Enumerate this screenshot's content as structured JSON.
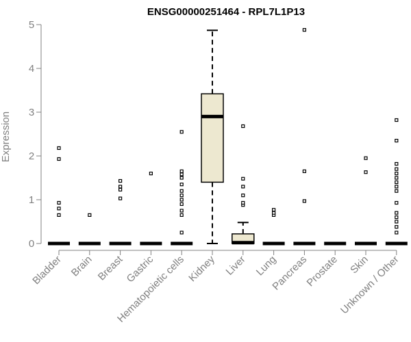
{
  "chart_data": {
    "type": "box",
    "title": "ENSG00000251464 - RPL7L1P13",
    "xlabel": "",
    "ylabel": "Expression",
    "ylim": [
      0,
      5
    ],
    "yticks": [
      0,
      1,
      2,
      3,
      4,
      5
    ],
    "grid": false,
    "box_fill": "#ede8d0",
    "categories": [
      "Bladder",
      "Brain",
      "Breast",
      "Gastric",
      "Hematopoietic cells",
      "Kidney",
      "Liver",
      "Lung",
      "Pancreas",
      "Prostate",
      "Skin",
      "Unknown / Other"
    ],
    "boxes": [
      {
        "q1": 0,
        "median": 0,
        "q3": 0,
        "whisker_low": 0,
        "whisker_high": 0,
        "outliers": [
          0.65,
          0.8,
          0.93,
          1.93,
          2.18
        ]
      },
      {
        "q1": 0,
        "median": 0,
        "q3": 0,
        "whisker_low": 0,
        "whisker_high": 0,
        "outliers": [
          0.65
        ]
      },
      {
        "q1": 0,
        "median": 0,
        "q3": 0,
        "whisker_low": 0,
        "whisker_high": 0,
        "outliers": [
          1.03,
          1.23,
          1.3,
          1.43
        ]
      },
      {
        "q1": 0,
        "median": 0,
        "q3": 0,
        "whisker_low": 0,
        "whisker_high": 0,
        "outliers": [
          1.6
        ]
      },
      {
        "q1": 0,
        "median": 0,
        "q3": 0,
        "whisker_low": 0,
        "whisker_high": 0,
        "outliers": [
          0.25,
          0.65,
          0.75,
          0.9,
          1.0,
          1.1,
          1.2,
          1.35,
          1.5,
          1.58,
          1.65,
          2.55
        ]
      },
      {
        "q1": 1.4,
        "median": 2.9,
        "q3": 3.42,
        "whisker_low": 0,
        "whisker_high": 4.87,
        "outliers": []
      },
      {
        "q1": 0,
        "median": 0.02,
        "q3": 0.22,
        "whisker_low": 0,
        "whisker_high": 0.48,
        "outliers": [
          0.88,
          0.93,
          1.1,
          1.3,
          1.48,
          2.68
        ]
      },
      {
        "q1": 0,
        "median": 0,
        "q3": 0,
        "whisker_low": 0,
        "whisker_high": 0,
        "outliers": [
          0.65,
          0.7,
          0.77
        ]
      },
      {
        "q1": 0,
        "median": 0,
        "q3": 0,
        "whisker_low": 0,
        "whisker_high": 0,
        "outliers": [
          0.97,
          1.65,
          4.88
        ]
      },
      {
        "q1": 0,
        "median": 0,
        "q3": 0,
        "whisker_low": 0,
        "whisker_high": 0,
        "outliers": []
      },
      {
        "q1": 0,
        "median": 0,
        "q3": 0,
        "whisker_low": 0,
        "whisker_high": 0,
        "outliers": [
          1.63,
          1.95
        ]
      },
      {
        "q1": 0,
        "median": 0,
        "q3": 0,
        "whisker_low": 0,
        "whisker_high": 0,
        "outliers": [
          0.25,
          0.38,
          0.5,
          0.6,
          0.7,
          0.93,
          1.2,
          1.3,
          1.4,
          1.5,
          1.6,
          1.7,
          1.82,
          2.35,
          2.82
        ]
      }
    ]
  }
}
